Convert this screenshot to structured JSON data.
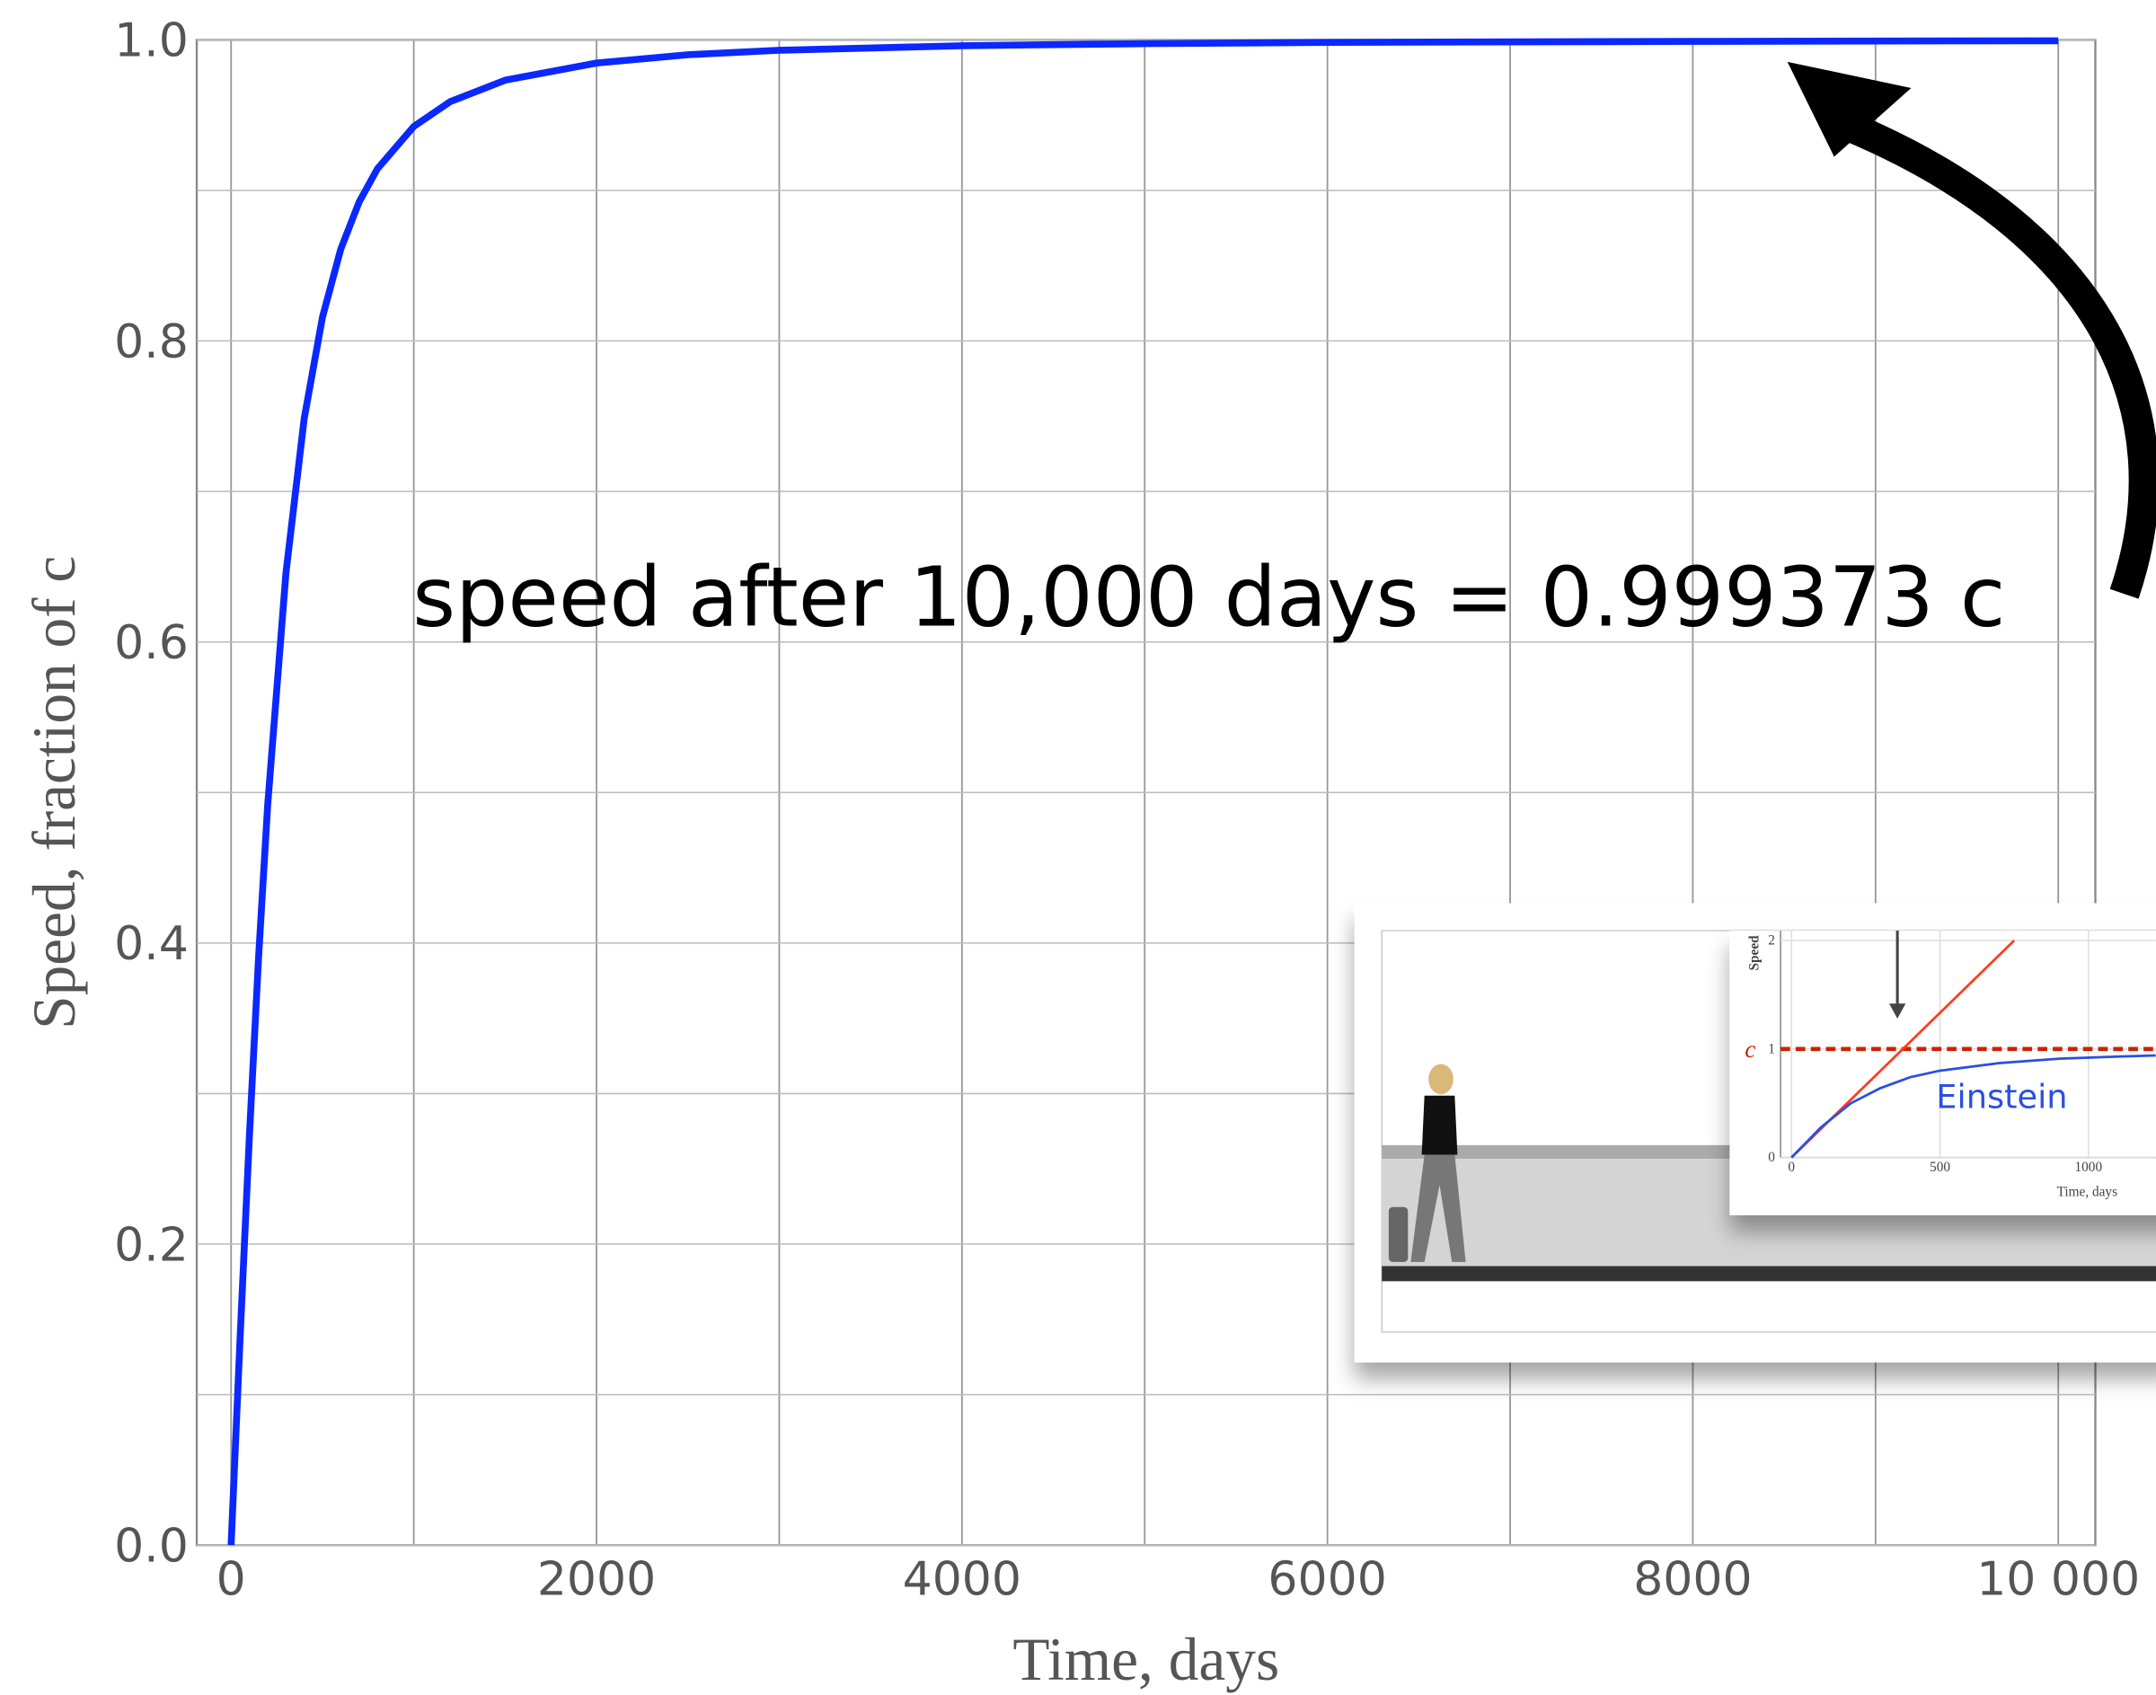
{
  "chart_data": [
    {
      "type": "line",
      "xlabel": "Time, days",
      "ylabel": "Speed, fraction of c",
      "annotation": "speed after 10,000 days = 0.999373 c",
      "xlim": [
        -188,
        10203
      ],
      "ylim": [
        0,
        1
      ],
      "xticks": [
        0,
        2000,
        4000,
        6000,
        8000,
        {
          "value": 10000,
          "label": "10 000"
        }
      ],
      "yticks": [
        {
          "value": 0,
          "label": "0.0"
        },
        0.2,
        0.4,
        0.6,
        0.8,
        {
          "value": 1,
          "label": "1.0"
        }
      ],
      "xgrid": [
        0,
        1000,
        2000,
        3000,
        4000,
        5000,
        6000,
        7000,
        8000,
        9000,
        10000
      ],
      "ygrid": [
        0,
        0.1,
        0.2,
        0.3,
        0.4,
        0.5,
        0.6,
        0.7,
        0.8,
        0.9,
        1
      ],
      "grid": true,
      "series": [
        {
          "color": "#0a28ff",
          "x": [
            0,
            50,
            100,
            150,
            200,
            300,
            400,
            500,
            600,
            700,
            800,
            1000,
            1200,
            1500,
            2000,
            2500,
            3000,
            4000,
            5000,
            6000,
            8000,
            10000
          ],
          "values": [
            0,
            0.1396,
            0.2714,
            0.3896,
            0.4913,
            0.6456,
            0.7484,
            0.8157,
            0.8609,
            0.8921,
            0.9142,
            0.9425,
            0.959,
            0.9732,
            0.9846,
            0.9901,
            0.9931,
            0.9961,
            0.9975,
            0.9983,
            0.999,
            0.9994
          ]
        }
      ]
    },
    {
      "type": "line",
      "ylabel": "Speed",
      "xlabel": "Time, days",
      "annotation": "Einstein",
      "xlim": [
        -37,
        1227
      ],
      "ylim": [
        0,
        2.09
      ],
      "xticks": [
        0,
        500,
        1000
      ],
      "yticks": [
        0,
        1,
        2
      ],
      "grid": true,
      "hline": {
        "value": 1,
        "label": "c",
        "color": "#cc2200"
      },
      "series": [
        {
          "color": "#ff3b1f",
          "x": [
            0,
            750
          ],
          "values": [
            0,
            2
          ]
        },
        {
          "color": "#2a4fe0",
          "x": [
            0,
            100,
            200,
            300,
            400,
            500,
            700,
            900,
            1100,
            1227
          ],
          "values": [
            0,
            0.28,
            0.5,
            0.64,
            0.74,
            0.8,
            0.87,
            0.91,
            0.93,
            0.94
          ]
        }
      ]
    }
  ]
}
